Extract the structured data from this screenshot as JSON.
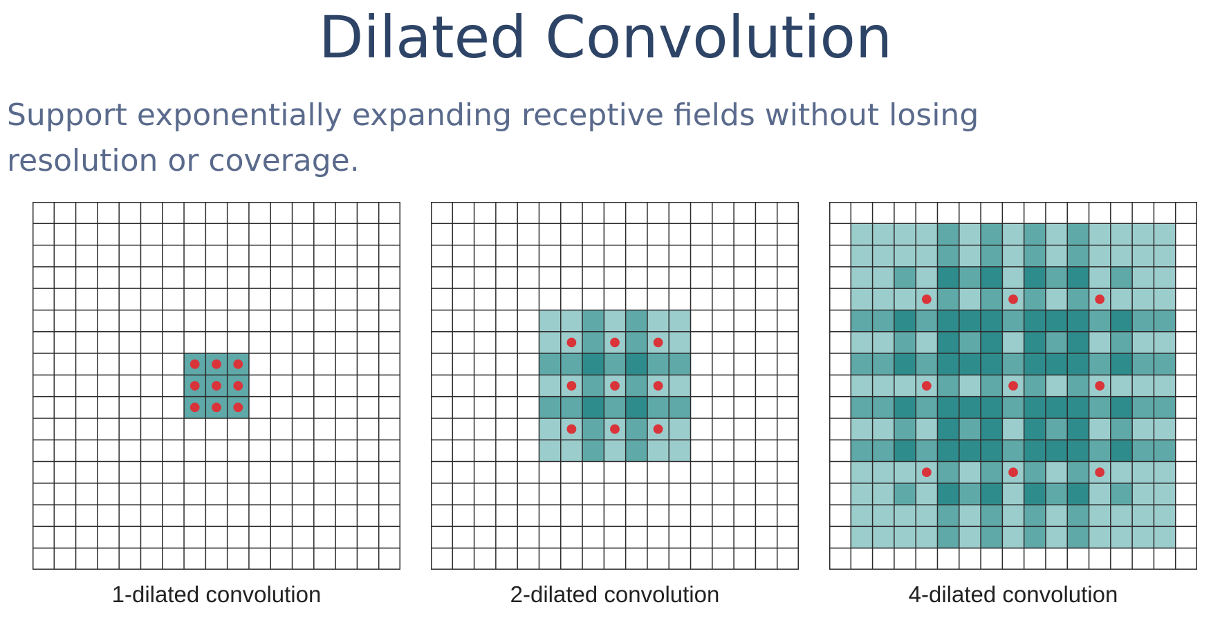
{
  "slide": {
    "title": "Dilated Convolution",
    "subtitle": "Support exponentially expanding receptive fields without losing resolution or coverage."
  },
  "colors": {
    "grid_line": "#2b2b2b",
    "dot": "#d9343a",
    "receptive_field_light": "#9ccdcd",
    "receptive_field_medium": "#5fa9a9",
    "receptive_field_dark": "#2f8c8c"
  },
  "grid": {
    "rows": 17,
    "cols": 17
  },
  "panels": [
    {
      "caption": "1-dilated convolution",
      "dilation": 1
    },
    {
      "caption": "2-dilated convolution",
      "dilation": 2
    },
    {
      "caption": "4-dilated convolution",
      "dilation": 4
    }
  ]
}
